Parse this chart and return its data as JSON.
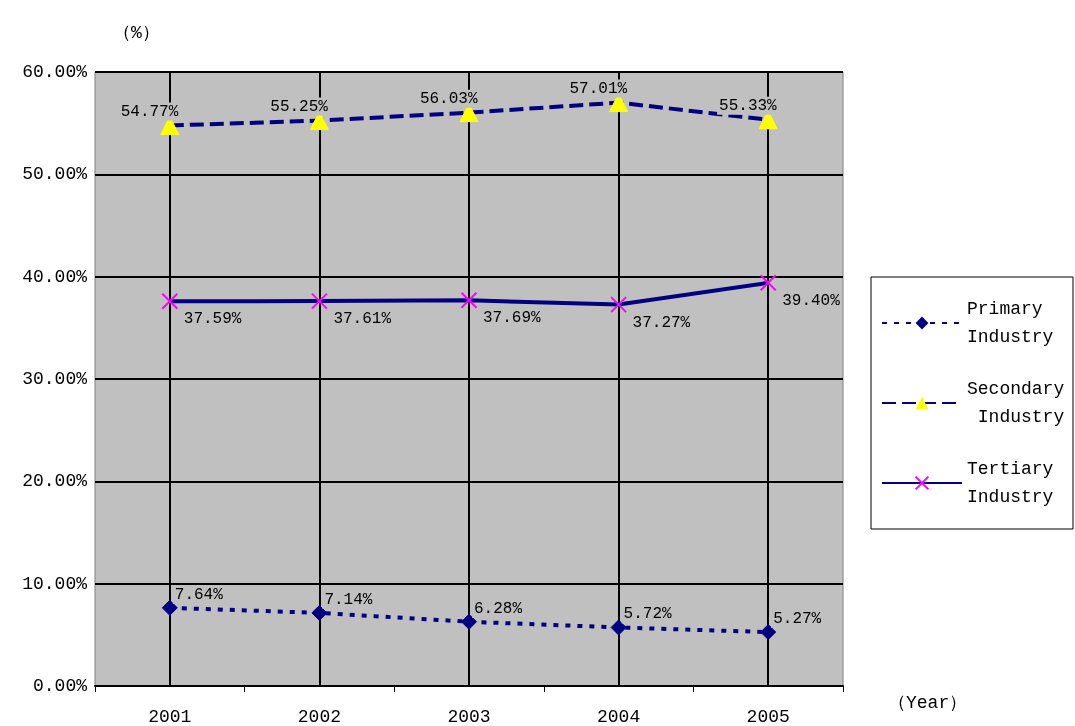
{
  "chart_data": {
    "type": "line",
    "ylabel": "（%）",
    "xlabel": "（Year）",
    "categories": [
      "2001",
      "2002",
      "2003",
      "2004",
      "2005"
    ],
    "ylim": [
      0,
      60
    ],
    "yticks": [
      {
        "value": 0,
        "label": "0.00%"
      },
      {
        "value": 10,
        "label": "10.00%"
      },
      {
        "value": 20,
        "label": "20.00%"
      },
      {
        "value": 30,
        "label": "30.00%"
      },
      {
        "value": 40,
        "label": "40.00%"
      },
      {
        "value": 50,
        "label": "50.00%"
      },
      {
        "value": 60,
        "label": "60.00%"
      }
    ],
    "grid": true,
    "legend": "right",
    "series": [
      {
        "name": "Primary Industry",
        "color": "#000080",
        "colors": [
          "#000080",
          "#000080",
          "#000080",
          "#000080",
          "#000080"
        ],
        "marker": "diamond",
        "line_style": "dotted",
        "values": [
          7.64,
          7.14,
          6.28,
          5.72,
          5.27
        ],
        "value_labels": [
          "7.64%",
          "7.14%",
          "6.28%",
          "5.72%",
          "5.27%"
        ]
      },
      {
        "name": "Secondary Industry",
        "color": "#000080",
        "colors": [
          "#ffff00",
          "#ffff00",
          "#ffff00",
          "#ffff00",
          "#ffff00"
        ],
        "marker": "triangle",
        "line_style": "dashed",
        "values": [
          54.77,
          55.25,
          56.03,
          57.01,
          55.33
        ],
        "value_labels": [
          "54.77%",
          "55.25%",
          "56.03%",
          "57.01%",
          "55.33%"
        ]
      },
      {
        "name": "Tertiary Industry",
        "color": "#000080",
        "colors": [
          "#ff00ff",
          "#ff00ff",
          "#ff00ff",
          "#ff00ff",
          "#ff00ff"
        ],
        "marker": "cross",
        "line_style": "solid",
        "values": [
          37.59,
          37.61,
          37.69,
          37.27,
          39.4
        ],
        "value_labels": [
          "37.59%",
          "37.61%",
          "37.69%",
          "37.27%",
          "39.40%"
        ]
      }
    ]
  }
}
